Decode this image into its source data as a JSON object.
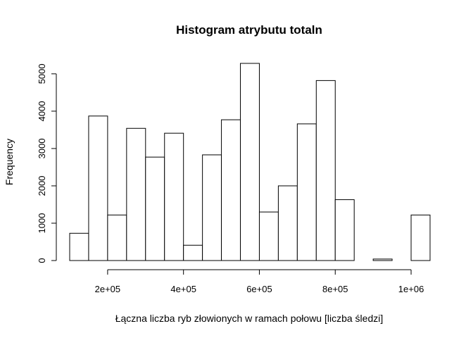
{
  "chart_data": {
    "type": "histogram",
    "title": "Histogram atrybutu totaln",
    "xlabel": "Łączna liczba ryb złowionych w ramach połowu [liczba śledzi]",
    "ylabel": "Frequency",
    "bin_width": 50000,
    "bins": [
      {
        "start": 100000,
        "end": 150000,
        "count": 730
      },
      {
        "start": 150000,
        "end": 200000,
        "count": 3870
      },
      {
        "start": 200000,
        "end": 250000,
        "count": 1220
      },
      {
        "start": 250000,
        "end": 300000,
        "count": 3540
      },
      {
        "start": 300000,
        "end": 350000,
        "count": 2770
      },
      {
        "start": 350000,
        "end": 400000,
        "count": 3410
      },
      {
        "start": 400000,
        "end": 450000,
        "count": 410
      },
      {
        "start": 450000,
        "end": 500000,
        "count": 2830
      },
      {
        "start": 500000,
        "end": 550000,
        "count": 3770
      },
      {
        "start": 550000,
        "end": 600000,
        "count": 5280
      },
      {
        "start": 600000,
        "end": 650000,
        "count": 1300
      },
      {
        "start": 650000,
        "end": 700000,
        "count": 2000
      },
      {
        "start": 700000,
        "end": 750000,
        "count": 3660
      },
      {
        "start": 750000,
        "end": 800000,
        "count": 4820
      },
      {
        "start": 800000,
        "end": 850000,
        "count": 1630
      },
      {
        "start": 850000,
        "end": 900000,
        "count": 0
      },
      {
        "start": 900000,
        "end": 950000,
        "count": 40
      },
      {
        "start": 950000,
        "end": 1000000,
        "count": 0
      },
      {
        "start": 1000000,
        "end": 1050000,
        "count": 1220
      }
    ],
    "xlim": [
      100000,
      1050000
    ],
    "x_ticks": [
      {
        "value": 200000,
        "label": "2e+05"
      },
      {
        "value": 400000,
        "label": "4e+05"
      },
      {
        "value": 600000,
        "label": "6e+05"
      },
      {
        "value": 800000,
        "label": "8e+05"
      },
      {
        "value": 1000000,
        "label": "1e+06"
      }
    ],
    "ylim": [
      0,
      5280
    ],
    "y_ticks": [
      {
        "value": 0,
        "label": "0"
      },
      {
        "value": 1000,
        "label": "1000"
      },
      {
        "value": 2000,
        "label": "2000"
      },
      {
        "value": 3000,
        "label": "3000"
      },
      {
        "value": 4000,
        "label": "4000"
      },
      {
        "value": 5000,
        "label": "5000"
      }
    ],
    "bar_fill": "#ffffff",
    "bar_stroke": "#000000",
    "grid": false
  }
}
